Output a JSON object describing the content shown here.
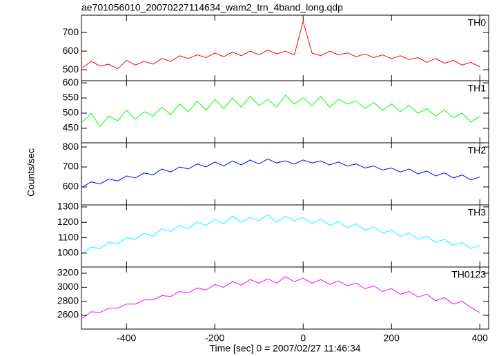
{
  "chart_data": {
    "type": "line",
    "title": "ae701056010_20070227114634_wam2_trn_4band_long.qdp",
    "xlabel": "Time [sec] 0 = 2007/02/27 11:46:34",
    "ylabel": "Counts/sec",
    "xlim": [
      -502,
      420
    ],
    "xticks": [
      -400,
      -200,
      0,
      200,
      400
    ],
    "x": [
      -500,
      -480,
      -460,
      -440,
      -420,
      -400,
      -380,
      -360,
      -340,
      -320,
      -300,
      -280,
      -260,
      -240,
      -220,
      -200,
      -180,
      -160,
      -140,
      -120,
      -100,
      -80,
      -60,
      -40,
      -20,
      0,
      20,
      40,
      60,
      80,
      100,
      120,
      140,
      160,
      180,
      200,
      220,
      240,
      260,
      280,
      300,
      320,
      340,
      360,
      380,
      400
    ],
    "panels": [
      {
        "ylim": [
          441,
          793
        ],
        "yticks": [
          500,
          600,
          700
        ],
        "series": [
          {
            "name": "TH0",
            "color": "#ff0000",
            "values": [
              510,
              545,
              520,
              530,
              505,
              550,
              525,
              545,
              530,
              560,
              545,
              575,
              560,
              580,
              565,
              590,
              570,
              595,
              575,
              600,
              580,
              605,
              585,
              600,
              580,
              760,
              590,
              575,
              600,
              580,
              590,
              570,
              585,
              565,
              580,
              560,
              575,
              555,
              565,
              540,
              560,
              535,
              550,
              525,
              540,
              515
            ]
          }
        ]
      },
      {
        "ylim": [
          402,
          607
        ],
        "yticks": [
          450,
          500,
          550,
          600
        ],
        "series": [
          {
            "name": "TH1",
            "color": "#00ff00",
            "values": [
              470,
              500,
              455,
              490,
              475,
              510,
              480,
              505,
              490,
              520,
              495,
              530,
              505,
              540,
              510,
              545,
              515,
              550,
              520,
              555,
              525,
              545,
              520,
              560,
              530,
              550,
              525,
              555,
              520,
              545,
              530,
              540,
              515,
              535,
              510,
              530,
              505,
              525,
              500,
              515,
              490,
              510,
              485,
              500,
              470,
              490
            ]
          }
        ]
      },
      {
        "ylim": [
          510,
          821
        ],
        "yticks": [
          600,
          700,
          800
        ],
        "series": [
          {
            "name": "TH2",
            "color": "#0000ff",
            "values": [
              600,
              625,
              615,
              640,
              630,
              655,
              645,
              670,
              660,
              690,
              675,
              700,
              690,
              715,
              700,
              725,
              705,
              730,
              710,
              735,
              715,
              740,
              720,
              730,
              715,
              735,
              720,
              730,
              710,
              725,
              705,
              715,
              695,
              705,
              685,
              695,
              675,
              690,
              665,
              680,
              655,
              670,
              645,
              660,
              635,
              650
            ]
          }
        ]
      },
      {
        "ylim": [
          910,
          1313
        ],
        "yticks": [
          1000,
          1100,
          1200,
          1300
        ],
        "series": [
          {
            "name": "TH3",
            "color": "#00ffff",
            "values": [
              1000,
              1040,
              1030,
              1070,
              1060,
              1100,
              1090,
              1130,
              1110,
              1160,
              1140,
              1180,
              1160,
              1200,
              1180,
              1220,
              1190,
              1240,
              1200,
              1230,
              1210,
              1250,
              1200,
              1240,
              1210,
              1230,
              1195,
              1220,
              1180,
              1205,
              1165,
              1190,
              1150,
              1170,
              1130,
              1150,
              1110,
              1130,
              1090,
              1110,
              1070,
              1090,
              1050,
              1070,
              1030,
              1050
            ]
          }
        ]
      },
      {
        "ylim": [
          2403,
          3289
        ],
        "yticks": [
          2600,
          2800,
          3000,
          3200
        ],
        "series": [
          {
            "name": "TH0123",
            "color": "#ff00ff",
            "values": [
              2560,
              2650,
              2640,
              2700,
              2700,
              2760,
              2760,
              2820,
              2820,
              2880,
              2870,
              2940,
              2920,
              2990,
              2960,
              3040,
              3000,
              3080,
              3030,
              3110,
              3060,
              3120,
              3060,
              3150,
              3080,
              3130,
              3060,
              3110,
              3040,
              3090,
              3020,
              3060,
              2980,
              3020,
              2940,
              2980,
              2900,
              2940,
              2860,
              2900,
              2810,
              2850,
              2760,
              2800,
              2710,
              2640
            ]
          }
        ]
      }
    ]
  }
}
